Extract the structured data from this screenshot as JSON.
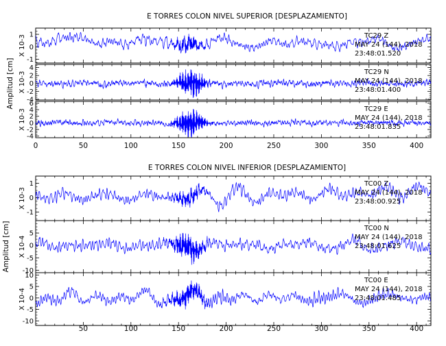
{
  "chart_data": [
    {
      "type": "line",
      "title": "E TORRES COLON NIVEL SUPERIOR [DESPLAZAMIENTO]",
      "ylabel": "Amplitud [cm]",
      "xlim": [
        0,
        415
      ],
      "xticks": [
        0,
        50,
        100,
        150,
        200,
        250,
        300,
        350,
        400
      ],
      "x_ticklabels_shown": true,
      "panels": [
        {
          "station": "TC29",
          "component": "Z",
          "date": "MAY 24 (144), 2018",
          "time": "23:48:01.520",
          "scale_label": "X 10-3",
          "ylim": [
            -1.3,
            1.5
          ],
          "yticks": [
            -1,
            0,
            1
          ],
          "trace": {
            "seed": 11,
            "base": 0.35,
            "low": 0.5,
            "mid": 0.45,
            "burst": 0.6,
            "burst_center": 160,
            "burst_width": 14,
            "high_freq": 0.18,
            "drift": [
              0.25,
              -0.2,
              0.0
            ]
          }
        },
        {
          "station": "TC29",
          "component": "N",
          "date": "MAY 24 (144), 2018",
          "time": "23:48:01.400",
          "scale_label": "X 10-3",
          "ylim": [
            -4.2,
            4.8
          ],
          "yticks": [
            -4,
            -2,
            0,
            2,
            4
          ],
          "trace": {
            "seed": 23,
            "base": 0.0,
            "low": 0.4,
            "mid": 0.7,
            "burst": 3.8,
            "burst_center": 163,
            "burst_width": 14,
            "high_freq": 0.9,
            "drift": [
              0,
              0,
              0
            ]
          }
        },
        {
          "station": "TC29",
          "component": "E",
          "date": "MAY 24 (144), 2018",
          "time": "23:48:01.835",
          "scale_label": "X 10-3",
          "ylim": [
            -4.5,
            6.5
          ],
          "yticks": [
            -4,
            -2,
            0,
            2,
            4,
            6
          ],
          "trace": {
            "seed": 37,
            "base": 0.0,
            "low": 0.4,
            "mid": 0.7,
            "burst": 4.8,
            "burst_center": 162,
            "burst_width": 14,
            "high_freq": 1.0,
            "drift": [
              0,
              0,
              0
            ]
          }
        }
      ]
    },
    {
      "type": "line",
      "title": "E TORRES COLON NIVEL INFERIOR [DESPLAZAMIENTO]",
      "ylabel": "Amplitud [cm]",
      "xlim": [
        0,
        415
      ],
      "xticks": [
        50,
        100,
        150,
        200,
        250,
        300,
        350,
        400
      ],
      "x_ticklabels_shown": true,
      "panels": [
        {
          "station": "TC00",
          "component": "Z",
          "date": "MAY 24 (144), 2018",
          "time": "23:48:00.925",
          "scale_label": "X 10-3",
          "ylim": [
            -1.6,
            1.5
          ],
          "yticks": [
            -1,
            0,
            1
          ],
          "trace": {
            "seed": 51,
            "base": 0.1,
            "low": 0.55,
            "mid": 0.45,
            "burst": 0.5,
            "burst_center": 160,
            "burst_width": 16,
            "high_freq": 0.15,
            "drift": [
              0.0,
              -0.2,
              0.4
            ]
          }
        },
        {
          "station": "TC00",
          "component": "N",
          "date": "MAY 24 (144), 2018",
          "time": "23:48:01.625",
          "scale_label": "X 10-4",
          "ylim": [
            -11,
            10
          ],
          "yticks": [
            -10,
            -5,
            0,
            5
          ],
          "trace": {
            "seed": 67,
            "base": 0.0,
            "low": 2.5,
            "mid": 3.0,
            "burst": 5.5,
            "burst_center": 160,
            "burst_width": 16,
            "high_freq": 1.0,
            "drift": [
              0,
              0,
              0
            ]
          }
        },
        {
          "station": "TC00",
          "component": "E",
          "date": "MAY 24 (144), 2018",
          "time": "23:48:01.485",
          "scale_label": "X 10-4",
          "ylim": [
            -12,
            11
          ],
          "yticks": [
            -10,
            -5,
            0,
            5,
            10
          ],
          "trace": {
            "seed": 83,
            "base": 0.0,
            "low": 3.0,
            "mid": 3.0,
            "burst": 4.5,
            "burst_center": 160,
            "burst_width": 18,
            "high_freq": 1.1,
            "drift": [
              0,
              0,
              0
            ]
          }
        }
      ]
    }
  ],
  "colors": {
    "trace": "#0000ff",
    "axes": "#000000",
    "background": "#ffffff"
  }
}
